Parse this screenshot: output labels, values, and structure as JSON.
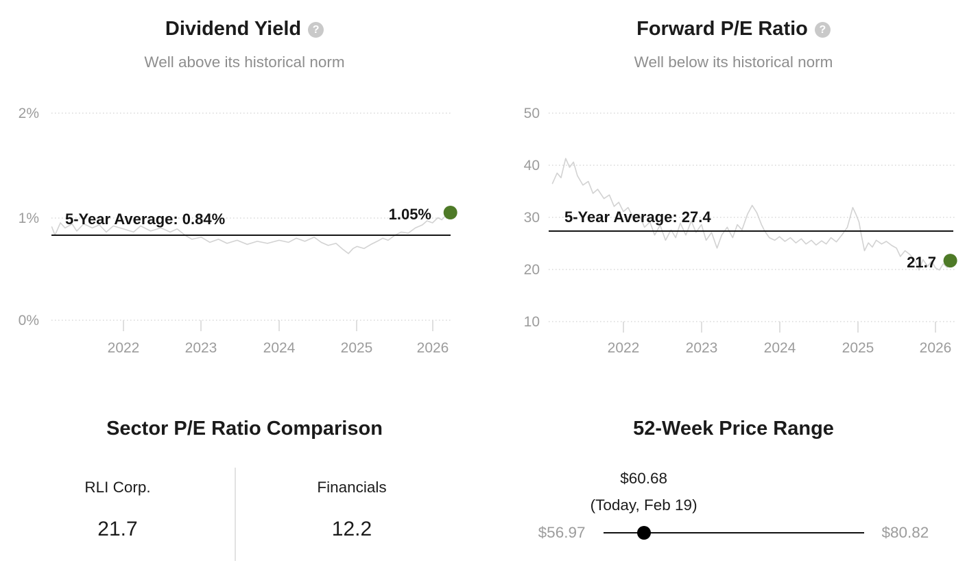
{
  "colors": {
    "accent_green": "#4e7a27",
    "series_gray": "#d2d2d2",
    "average_line": "#141414",
    "axis_text": "#9c9c9c",
    "muted_text": "#8e8e8e",
    "grid": "#d8d8d8",
    "divider": "#e2e2e2",
    "title_text": "#1b1b1b",
    "slider_dot": "#000000"
  },
  "chart_data": [
    {
      "type": "line",
      "title": "Dividend Yield",
      "help_glyph": "?",
      "subtitle": "Well above its historical norm",
      "xlabel": "",
      "ylabel": "",
      "xlim": [
        2021.07,
        2026.27
      ],
      "ylim": [
        0,
        2.02
      ],
      "grid": "dotted-horizontal",
      "legend": "none",
      "y_ticks": [
        {
          "value": 2,
          "label": "2%"
        },
        {
          "value": 1,
          "label": "1%"
        },
        {
          "value": 0,
          "label": "0%"
        }
      ],
      "x_ticks": [
        {
          "value": 2022,
          "label": "2022"
        },
        {
          "value": 2023,
          "label": "2023"
        },
        {
          "value": 2024,
          "label": "2024"
        },
        {
          "value": 2025,
          "label": "2025"
        },
        {
          "value": 2026,
          "label": "2026"
        }
      ],
      "average": {
        "value": 0.84,
        "label": "5-Year Average: 0.84%"
      },
      "current": {
        "value": 1.05,
        "label": "1.05%"
      },
      "series": [
        {
          "name": "Dividend Yield",
          "color": "#d2d2d2",
          "points": [
            [
              2021.08,
              0.91
            ],
            [
              2021.12,
              0.83
            ],
            [
              2021.19,
              0.95
            ],
            [
              2021.25,
              0.9
            ],
            [
              2021.34,
              0.94
            ],
            [
              2021.4,
              0.87
            ],
            [
              2021.49,
              0.94
            ],
            [
              2021.6,
              0.9
            ],
            [
              2021.69,
              0.93
            ],
            [
              2021.78,
              0.86
            ],
            [
              2021.87,
              0.92
            ],
            [
              2022.0,
              0.89
            ],
            [
              2022.13,
              0.86
            ],
            [
              2022.22,
              0.92
            ],
            [
              2022.35,
              0.87
            ],
            [
              2022.48,
              0.9
            ],
            [
              2022.6,
              0.86
            ],
            [
              2022.69,
              0.89
            ],
            [
              2022.79,
              0.83
            ],
            [
              2022.88,
              0.79
            ],
            [
              2023.0,
              0.81
            ],
            [
              2023.11,
              0.76
            ],
            [
              2023.22,
              0.79
            ],
            [
              2023.33,
              0.75
            ],
            [
              2023.46,
              0.78
            ],
            [
              2023.59,
              0.74
            ],
            [
              2023.72,
              0.77
            ],
            [
              2023.85,
              0.75
            ],
            [
              2024.0,
              0.78
            ],
            [
              2024.12,
              0.76
            ],
            [
              2024.22,
              0.8
            ],
            [
              2024.33,
              0.77
            ],
            [
              2024.45,
              0.81
            ],
            [
              2024.54,
              0.76
            ],
            [
              2024.63,
              0.73
            ],
            [
              2024.73,
              0.75
            ],
            [
              2024.82,
              0.69
            ],
            [
              2024.89,
              0.65
            ],
            [
              2024.95,
              0.7
            ],
            [
              2025.0,
              0.72
            ],
            [
              2025.09,
              0.7
            ],
            [
              2025.18,
              0.74
            ],
            [
              2025.26,
              0.77
            ],
            [
              2025.33,
              0.8
            ],
            [
              2025.4,
              0.78
            ],
            [
              2025.49,
              0.83
            ],
            [
              2025.57,
              0.86
            ],
            [
              2025.66,
              0.85
            ],
            [
              2025.75,
              0.9
            ],
            [
              2025.84,
              0.93
            ],
            [
              2025.9,
              0.97
            ],
            [
              2025.97,
              0.95
            ],
            [
              2026.04,
              1.0
            ],
            [
              2026.09,
              0.98
            ],
            [
              2026.15,
              1.03
            ],
            [
              2026.2,
              1.05
            ]
          ]
        }
      ]
    },
    {
      "type": "line",
      "title": "Forward P/E Ratio",
      "help_glyph": "?",
      "subtitle": "Well below its historical norm",
      "xlabel": "",
      "ylabel": "",
      "xlim": [
        2021.08,
        2026.23
      ],
      "ylim": [
        8,
        52
      ],
      "grid": "dotted-horizontal",
      "legend": "none",
      "y_ticks": [
        {
          "value": 50,
          "label": "50"
        },
        {
          "value": 40,
          "label": "40"
        },
        {
          "value": 30,
          "label": "30"
        },
        {
          "value": 20,
          "label": "20"
        },
        {
          "value": 10,
          "label": "10"
        }
      ],
      "x_ticks": [
        {
          "value": 2022,
          "label": "2022"
        },
        {
          "value": 2023,
          "label": "2023"
        },
        {
          "value": 2024,
          "label": "2024"
        },
        {
          "value": 2025,
          "label": "2025"
        },
        {
          "value": 2026,
          "label": "2026"
        }
      ],
      "average": {
        "value": 27.4,
        "label": "5-Year Average: 27.4"
      },
      "current": {
        "value": 21.7,
        "label": "21.7"
      },
      "series": [
        {
          "name": "Forward P/E Ratio",
          "color": "#d2d2d2",
          "points": [
            [
              2021.09,
              36.5
            ],
            [
              2021.15,
              38.5
            ],
            [
              2021.2,
              37.6
            ],
            [
              2021.26,
              41.3
            ],
            [
              2021.31,
              39.6
            ],
            [
              2021.36,
              40.6
            ],
            [
              2021.41,
              38.0
            ],
            [
              2021.48,
              36.2
            ],
            [
              2021.55,
              36.9
            ],
            [
              2021.61,
              34.6
            ],
            [
              2021.67,
              35.4
            ],
            [
              2021.75,
              33.6
            ],
            [
              2021.82,
              34.3
            ],
            [
              2021.88,
              32.1
            ],
            [
              2021.94,
              32.9
            ],
            [
              2022.0,
              31.1
            ],
            [
              2022.06,
              31.9
            ],
            [
              2022.14,
              29.6
            ],
            [
              2022.2,
              30.6
            ],
            [
              2022.27,
              28.1
            ],
            [
              2022.34,
              29.1
            ],
            [
              2022.4,
              26.6
            ],
            [
              2022.47,
              28.5
            ],
            [
              2022.54,
              25.6
            ],
            [
              2022.61,
              27.6
            ],
            [
              2022.67,
              26.1
            ],
            [
              2022.73,
              28.9
            ],
            [
              2022.8,
              26.6
            ],
            [
              2022.87,
              29.3
            ],
            [
              2022.93,
              27.1
            ],
            [
              2023.0,
              28.6
            ],
            [
              2023.06,
              25.6
            ],
            [
              2023.13,
              27.1
            ],
            [
              2023.2,
              24.1
            ],
            [
              2023.26,
              26.6
            ],
            [
              2023.33,
              28.1
            ],
            [
              2023.4,
              26.1
            ],
            [
              2023.46,
              28.6
            ],
            [
              2023.52,
              27.6
            ],
            [
              2023.59,
              30.6
            ],
            [
              2023.65,
              32.3
            ],
            [
              2023.71,
              30.9
            ],
            [
              2023.77,
              28.6
            ],
            [
              2023.81,
              27.4
            ],
            [
              2023.87,
              26.1
            ],
            [
              2023.94,
              25.6
            ],
            [
              2024.0,
              26.3
            ],
            [
              2024.07,
              25.4
            ],
            [
              2024.14,
              26.1
            ],
            [
              2024.21,
              25.1
            ],
            [
              2024.28,
              25.9
            ],
            [
              2024.34,
              24.9
            ],
            [
              2024.41,
              25.6
            ],
            [
              2024.47,
              24.7
            ],
            [
              2024.54,
              25.5
            ],
            [
              2024.6,
              24.9
            ],
            [
              2024.66,
              26.1
            ],
            [
              2024.73,
              25.3
            ],
            [
              2024.8,
              26.6
            ],
            [
              2024.87,
              28.1
            ],
            [
              2024.94,
              31.9
            ],
            [
              2024.98,
              30.6
            ],
            [
              2025.02,
              29.1
            ],
            [
              2025.05,
              26.6
            ],
            [
              2025.09,
              23.6
            ],
            [
              2025.14,
              25.1
            ],
            [
              2025.19,
              24.3
            ],
            [
              2025.24,
              25.6
            ],
            [
              2025.31,
              24.9
            ],
            [
              2025.37,
              25.4
            ],
            [
              2025.44,
              24.6
            ],
            [
              2025.5,
              24.1
            ],
            [
              2025.55,
              22.5
            ],
            [
              2025.61,
              23.6
            ],
            [
              2025.67,
              22.9
            ],
            [
              2025.73,
              21.9
            ],
            [
              2025.79,
              19.9
            ],
            [
              2025.84,
              21.9
            ],
            [
              2025.9,
              20.6
            ],
            [
              2025.95,
              21.6
            ],
            [
              2026.0,
              20.3
            ],
            [
              2026.05,
              19.9
            ],
            [
              2026.1,
              21.1
            ],
            [
              2026.15,
              20.4
            ],
            [
              2026.19,
              21.7
            ]
          ]
        }
      ]
    },
    {
      "type": "table",
      "title": "Sector P/E Ratio Comparison",
      "columns": [
        {
          "label": "RLI Corp.",
          "value": "21.7"
        },
        {
          "label": "Financials",
          "value": "12.2"
        }
      ]
    },
    {
      "type": "range",
      "title": "52-Week Price Range",
      "low": 56.97,
      "high": 80.82,
      "current": 60.68,
      "low_label": "$56.97",
      "high_label": "$80.82",
      "current_label": "$60.68",
      "current_sublabel": "(Today, Feb 19)"
    }
  ]
}
